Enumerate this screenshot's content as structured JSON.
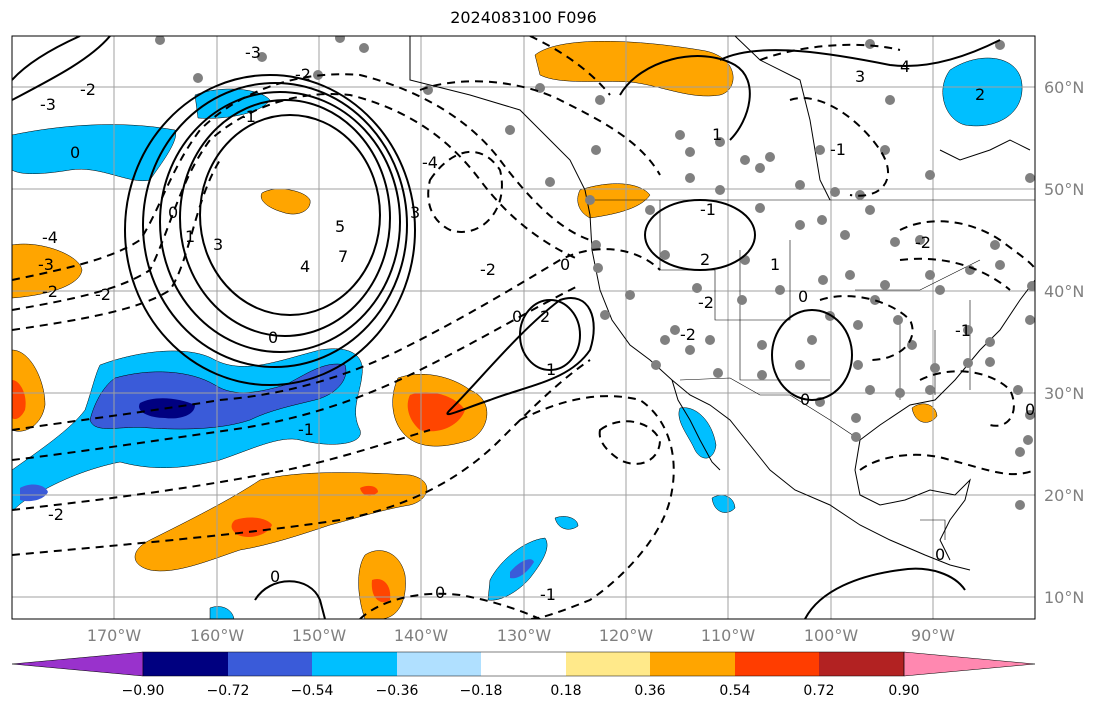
{
  "title": "2024083100 F096",
  "map": {
    "projection": "lat-lon",
    "lon_range": [
      "180°W",
      "80°W"
    ],
    "lat_range": [
      "8°N",
      "65°N"
    ],
    "lat_labels": [
      "60°N",
      "50°N",
      "40°N",
      "30°N",
      "20°N",
      "10°N"
    ],
    "lon_labels": [
      "170°W",
      "160°W",
      "150°W",
      "140°W",
      "130°W",
      "120°W",
      "110°W",
      "100°W",
      "90°W"
    ],
    "fill_colors": {
      "light_orange": "#f5e68c",
      "orange": "#ffa500",
      "red_orange": "#ff4500",
      "cyan": "#00bfff",
      "blue": "#3a5bd9",
      "navy": "#000080",
      "ocean_contour": "#000000",
      "coast": "#000000",
      "grid": "#a0a0a0",
      "station_dots": "#808080"
    },
    "contour_labels": [
      "-4",
      "-3",
      "-2",
      "-1",
      "0",
      "1",
      "2",
      "3",
      "4",
      "5",
      "7"
    ]
  },
  "colorbar": {
    "ticks": [
      "−0.90",
      "−0.72",
      "−0.54",
      "−0.36",
      "−0.18",
      "0.18",
      "0.36",
      "0.54",
      "0.72",
      "0.90"
    ],
    "colors": [
      "#9932cc",
      "#000080",
      "#3a5bd9",
      "#00bfff",
      "#b0e0ff",
      "#ffffff",
      "#ffe98a",
      "#ffa500",
      "#ff3d00",
      "#b22222",
      "#ff88b0"
    ]
  }
}
